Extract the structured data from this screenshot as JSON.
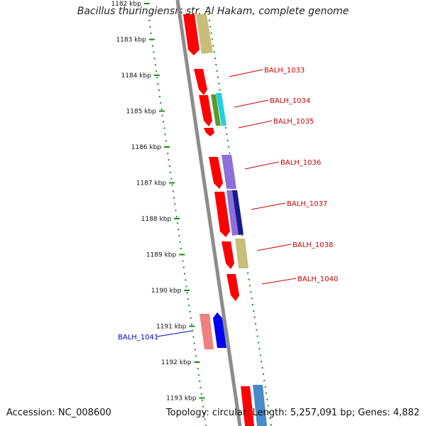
{
  "title": "Bacillus thuringiensis str. Al Hakam, complete genome",
  "footer": {
    "accession": "Accession: NC_008600",
    "topology": "Topology: circular; Length: 5,257,091 bp; Genes: 4,882"
  },
  "ticks": [
    {
      "label": "1182 kbp"
    },
    {
      "label": "1183 kbp"
    },
    {
      "label": "1184 kbp"
    },
    {
      "label": "1185 kbp"
    },
    {
      "label": "1186 kbp"
    },
    {
      "label": "1187 kbp"
    },
    {
      "label": "1188 kbp"
    },
    {
      "label": "1189 kbp"
    },
    {
      "label": "1190 kbp"
    },
    {
      "label": "1191 kbp"
    },
    {
      "label": "1192 kbp"
    },
    {
      "label": "1193 kbp"
    }
  ],
  "gene_labels": [
    {
      "text": "BALH_1033",
      "color": "#cc0000"
    },
    {
      "text": "BALH_1034",
      "color": "#cc0000"
    },
    {
      "text": "BALH_1035",
      "color": "#cc0000"
    },
    {
      "text": "BALH_1036",
      "color": "#cc0000"
    },
    {
      "text": "BALH_1037",
      "color": "#cc0000"
    },
    {
      "text": "BALH_1038",
      "color": "#cc0000"
    },
    {
      "text": "BALH_1040",
      "color": "#cc0000"
    },
    {
      "text": "BALH_1041",
      "color": "#0000cc"
    }
  ],
  "colors": {
    "backbone": "#8c8c8c",
    "ruler": "#1a8a1a",
    "forward_gene": "#ff0000",
    "khaki_gene": "#c8bd7a",
    "purple_gene": "#8c6fd8",
    "navy_gene": "#1a1a8c",
    "cyan_gene": "#22d0e0",
    "green_gene": "#5a9a2a",
    "blue_gene": "#0000ee",
    "pink_gene": "#f08080",
    "steel_gene": "#4a8ac8"
  }
}
